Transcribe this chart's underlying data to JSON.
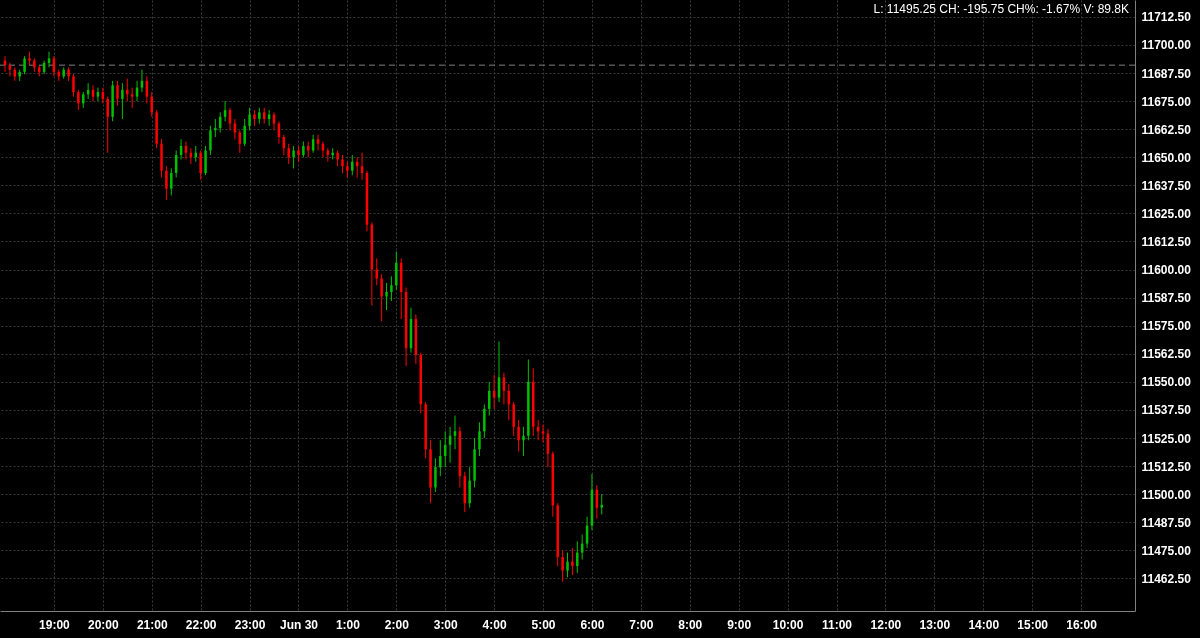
{
  "chart_data": {
    "type": "candlestick",
    "x": [
      "--06-29T18:00",
      "--06-29T18:06",
      "--06-29T18:12",
      "--06-29T18:18",
      "--06-29T18:24",
      "--06-29T18:30",
      "--06-29T18:36",
      "--06-29T18:42",
      "--06-29T18:48",
      "--06-29T18:54",
      "--06-29T19:00",
      "--06-29T19:06",
      "--06-29T19:12",
      "--06-29T19:18",
      "--06-29T19:24",
      "--06-29T19:30",
      "--06-29T19:36",
      "--06-29T19:42",
      "--06-29T19:48",
      "--06-29T19:54",
      "--06-29T20:00",
      "--06-29T20:06",
      "--06-29T20:12",
      "--06-29T20:18",
      "--06-29T20:24",
      "--06-29T20:30",
      "--06-29T20:36",
      "--06-29T20:42",
      "--06-29T20:48",
      "--06-29T20:54",
      "--06-29T21:00",
      "--06-29T21:06",
      "--06-29T21:12",
      "--06-29T21:18",
      "--06-29T21:24",
      "--06-29T21:30",
      "--06-29T21:36",
      "--06-29T21:42",
      "--06-29T21:48",
      "--06-29T21:54",
      "--06-29T22:00",
      "--06-29T22:06",
      "--06-29T22:12",
      "--06-29T22:18",
      "--06-29T22:24",
      "--06-29T22:30",
      "--06-29T22:36",
      "--06-29T22:42",
      "--06-29T22:48",
      "--06-29T22:54",
      "--06-29T23:00",
      "--06-29T23:06",
      "--06-29T23:12",
      "--06-29T23:18",
      "--06-29T23:24",
      "--06-29T23:30",
      "--06-29T23:36",
      "--06-29T23:42",
      "--06-29T23:48",
      "--06-29T23:54",
      "--06-30T00:00",
      "--06-30T00:06",
      "--06-30T00:12",
      "--06-30T00:18",
      "--06-30T00:24",
      "--06-30T00:30",
      "--06-30T00:36",
      "--06-30T00:42",
      "--06-30T00:48",
      "--06-30T00:54",
      "--06-30T01:00",
      "--06-30T01:06",
      "--06-30T01:12",
      "--06-30T01:18",
      "--06-30T01:24",
      "--06-30T01:30",
      "--06-30T01:36",
      "--06-30T01:42",
      "--06-30T01:48",
      "--06-30T01:54",
      "--06-30T02:00",
      "--06-30T02:06",
      "--06-30T02:12",
      "--06-30T02:18",
      "--06-30T02:24",
      "--06-30T02:30",
      "--06-30T02:36",
      "--06-30T02:42",
      "--06-30T02:48",
      "--06-30T02:54",
      "--06-30T03:00",
      "--06-30T03:06",
      "--06-30T03:12",
      "--06-30T03:18",
      "--06-30T03:24",
      "--06-30T03:30",
      "--06-30T03:36",
      "--06-30T03:42",
      "--06-30T03:48",
      "--06-30T03:54",
      "--06-30T04:00",
      "--06-30T04:06",
      "--06-30T04:12",
      "--06-30T04:18",
      "--06-30T04:24",
      "--06-30T04:30",
      "--06-30T04:36",
      "--06-30T04:42",
      "--06-30T04:48",
      "--06-30T04:54",
      "--06-30T05:00",
      "--06-30T05:06",
      "--06-30T05:12",
      "--06-30T05:18",
      "--06-30T05:24",
      "--06-30T05:30",
      "--06-30T05:36",
      "--06-30T05:42",
      "--06-30T05:48",
      "--06-30T05:54",
      "--06-30T06:00",
      "--06-30T06:06",
      "--06-30T06:12"
    ],
    "ohlc": [
      [
        11693,
        11695,
        11688,
        11691
      ],
      [
        11691,
        11692,
        11686,
        11689
      ],
      [
        11689,
        11690,
        11684,
        11686
      ],
      [
        11686,
        11689,
        11684,
        11688
      ],
      [
        11688,
        11695,
        11687,
        11694
      ],
      [
        11694,
        11697,
        11691,
        11693
      ],
      [
        11693,
        11694,
        11688,
        11690
      ],
      [
        11690,
        11691,
        11686,
        11688
      ],
      [
        11688,
        11693,
        11687,
        11692
      ],
      [
        11692,
        11697,
        11690,
        11694
      ],
      [
        11694,
        11695,
        11686,
        11688
      ],
      [
        11688,
        11689,
        11684,
        11686
      ],
      [
        11686,
        11690,
        11685,
        11689
      ],
      [
        11689,
        11690,
        11684,
        11686
      ],
      [
        11686,
        11687,
        11677,
        11679
      ],
      [
        11679,
        11680,
        11671,
        11674
      ],
      [
        11674,
        11679,
        11672,
        11678
      ],
      [
        11678,
        11683,
        11676,
        11680
      ],
      [
        11680,
        11682,
        11675,
        11677
      ],
      [
        11677,
        11681,
        11675,
        11679
      ],
      [
        11679,
        11681,
        11674,
        11676
      ],
      [
        11676,
        11677,
        11652,
        11668
      ],
      [
        11668,
        11684,
        11666,
        11682
      ],
      [
        11682,
        11684,
        11673,
        11676
      ],
      [
        11676,
        11683,
        11667,
        11680
      ],
      [
        11680,
        11685,
        11675,
        11678
      ],
      [
        11678,
        11681,
        11672,
        11677
      ],
      [
        11677,
        11684,
        11675,
        11681
      ],
      [
        11681,
        11689,
        11679,
        11684
      ],
      [
        11684,
        11686,
        11674,
        11677
      ],
      [
        11677,
        11679,
        11668,
        11670
      ],
      [
        11670,
        11671,
        11654,
        11656
      ],
      [
        11656,
        11658,
        11641,
        11644
      ],
      [
        11644,
        11646,
        11631,
        11636
      ],
      [
        11636,
        11645,
        11633,
        11643
      ],
      [
        11643,
        11653,
        11641,
        11651
      ],
      [
        11651,
        11658,
        11649,
        11655
      ],
      [
        11655,
        11657,
        11649,
        11652
      ],
      [
        11652,
        11654,
        11647,
        11650
      ],
      [
        11650,
        11655,
        11648,
        11652
      ],
      [
        11652,
        11653,
        11640,
        11643
      ],
      [
        11643,
        11655,
        11642,
        11653
      ],
      [
        11653,
        11664,
        11651,
        11662
      ],
      [
        11662,
        11667,
        11659,
        11663
      ],
      [
        11663,
        11670,
        11661,
        11668
      ],
      [
        11668,
        11675,
        11666,
        11671
      ],
      [
        11671,
        11672,
        11662,
        11665
      ],
      [
        11665,
        11667,
        11658,
        11661
      ],
      [
        11661,
        11662,
        11652,
        11656
      ],
      [
        11656,
        11667,
        11655,
        11664
      ],
      [
        11664,
        11672,
        11662,
        11669
      ],
      [
        11669,
        11671,
        11664,
        11667
      ],
      [
        11667,
        11672,
        11665,
        11670
      ],
      [
        11670,
        11672,
        11665,
        11667
      ],
      [
        11667,
        11671,
        11664,
        11669
      ],
      [
        11669,
        11670,
        11662,
        11665
      ],
      [
        11665,
        11666,
        11656,
        11659
      ],
      [
        11659,
        11660,
        11651,
        11654
      ],
      [
        11654,
        11656,
        11647,
        11650
      ],
      [
        11650,
        11655,
        11645,
        11653
      ],
      [
        11653,
        11655,
        11648,
        11651
      ],
      [
        11651,
        11657,
        11650,
        11655
      ],
      [
        11655,
        11657,
        11650,
        11653
      ],
      [
        11653,
        11660,
        11652,
        11658
      ],
      [
        11658,
        11660,
        11653,
        11656
      ],
      [
        11656,
        11657,
        11650,
        11653
      ],
      [
        11653,
        11654,
        11648,
        11651
      ],
      [
        11651,
        11654,
        11649,
        11652
      ],
      [
        11652,
        11653,
        11646,
        11649
      ],
      [
        11649,
        11651,
        11643,
        11646
      ],
      [
        11646,
        11648,
        11641,
        11644
      ],
      [
        11644,
        11651,
        11642,
        11648
      ],
      [
        11648,
        11650,
        11641,
        11646
      ],
      [
        11646,
        11652,
        11640,
        11643
      ],
      [
        11643,
        11644,
        11617,
        11620
      ],
      [
        11620,
        11621,
        11584,
        11600
      ],
      [
        11600,
        11605,
        11593,
        11596
      ],
      [
        11596,
        11598,
        11577,
        11588
      ],
      [
        11588,
        11594,
        11582,
        11590
      ],
      [
        11590,
        11597,
        11586,
        11593
      ],
      [
        11593,
        11608,
        11591,
        11603
      ],
      [
        11603,
        11605,
        11578,
        11590
      ],
      [
        11590,
        11592,
        11557,
        11565
      ],
      [
        11565,
        11583,
        11563,
        11578
      ],
      [
        11578,
        11580,
        11558,
        11562
      ],
      [
        11562,
        11563,
        11536,
        11540
      ],
      [
        11540,
        11541,
        11516,
        11520
      ],
      [
        11520,
        11524,
        11496,
        11503
      ],
      [
        11503,
        11516,
        11501,
        11512
      ],
      [
        11512,
        11524,
        11508,
        11517
      ],
      [
        11517,
        11528,
        11512,
        11522
      ],
      [
        11522,
        11530,
        11514,
        11526
      ],
      [
        11526,
        11535,
        11520,
        11528
      ],
      [
        11528,
        11530,
        11503,
        11508
      ],
      [
        11508,
        11510,
        11492,
        11496
      ],
      [
        11496,
        11512,
        11494,
        11506
      ],
      [
        11506,
        11525,
        11503,
        11520
      ],
      [
        11520,
        11532,
        11517,
        11528
      ],
      [
        11528,
        11540,
        11525,
        11538
      ],
      [
        11538,
        11550,
        11535,
        11546
      ],
      [
        11546,
        11553,
        11538,
        11543
      ],
      [
        11543,
        11568,
        11541,
        11552
      ],
      [
        11552,
        11554,
        11540,
        11546
      ],
      [
        11546,
        11549,
        11533,
        11540
      ],
      [
        11540,
        11541,
        11526,
        11530
      ],
      [
        11530,
        11533,
        11519,
        11524
      ],
      [
        11524,
        11530,
        11517,
        11526
      ],
      [
        11526,
        11560,
        11524,
        11550
      ],
      [
        11550,
        11556,
        11526,
        11530
      ],
      [
        11530,
        11533,
        11524,
        11528
      ],
      [
        11528,
        11531,
        11523,
        11527
      ],
      [
        11527,
        11529,
        11512,
        11518
      ],
      [
        11518,
        11519,
        11490,
        11495
      ],
      [
        11495,
        11496,
        11468,
        11472
      ],
      [
        11472,
        11475,
        11461,
        11466
      ],
      [
        11466,
        11474,
        11463,
        11470
      ],
      [
        11470,
        11476,
        11464,
        11468
      ],
      [
        11468,
        11479,
        11465,
        11474
      ],
      [
        11474,
        11482,
        11471,
        11478
      ],
      [
        11478,
        11490,
        11476,
        11486
      ],
      [
        11486,
        11509,
        11484,
        11502
      ],
      [
        11502,
        11504,
        11489,
        11494
      ],
      [
        11494,
        11500,
        11491,
        11495.25
      ]
    ],
    "colors": [
      "#ff0000",
      "#ff0000",
      "#ff0000",
      "#00c000",
      "#00c000",
      "#ff0000",
      "#ff0000",
      "#ff0000",
      "#00c000",
      "#00c000",
      "#ff0000",
      "#ff0000",
      "#00c000",
      "#ff0000",
      "#ff0000",
      "#ff0000",
      "#00c000",
      "#00c000",
      "#ff0000",
      "#00c000",
      "#ff0000",
      "#ff0000",
      "#00c000",
      "#ff0000",
      "#00c000",
      "#ff0000",
      "#ff0000",
      "#00c000",
      "#00c000",
      "#ff0000",
      "#ff0000",
      "#ff0000",
      "#ff0000",
      "#ff0000",
      "#00c000",
      "#00c000",
      "#00c000",
      "#ff0000",
      "#ff0000",
      "#00c000",
      "#ff0000",
      "#00c000",
      "#00c000",
      "#00c000",
      "#00c000",
      "#00c000",
      "#ff0000",
      "#ff0000",
      "#ff0000",
      "#00c000",
      "#00c000",
      "#ff0000",
      "#00c000",
      "#ff0000",
      "#00c000",
      "#ff0000",
      "#ff0000",
      "#ff0000",
      "#ff0000",
      "#00c000",
      "#ff0000",
      "#00c000",
      "#ff0000",
      "#00c000",
      "#ff0000",
      "#ff0000",
      "#ff0000",
      "#00c000",
      "#ff0000",
      "#ff0000",
      "#ff0000",
      "#00c000",
      "#ff0000",
      "#ff0000",
      "#ff0000",
      "#ff0000",
      "#ff0000",
      "#ff0000",
      "#00c000",
      "#00c000",
      "#00c000",
      "#ff0000",
      "#ff0000",
      "#00c000",
      "#ff0000",
      "#ff0000",
      "#ff0000",
      "#ff0000",
      "#00c000",
      "#00c000",
      "#00c000",
      "#00c000",
      "#00c000",
      "#ff0000",
      "#ff0000",
      "#00c000",
      "#00c000",
      "#00c000",
      "#00c000",
      "#00c000",
      "#ff0000",
      "#00c000",
      "#ff0000",
      "#ff0000",
      "#ff0000",
      "#ff0000",
      "#00c000",
      "#00c000",
      "#ff0000",
      "#ff0000",
      "#ff0000",
      "#ff0000",
      "#ff0000",
      "#ff0000",
      "#ff0000",
      "#00c000",
      "#ff0000",
      "#00c000",
      "#00c000",
      "#00c000",
      "#00c000",
      "#ff0000",
      "#00c000"
    ],
    "xlim": [
      "--06-29T18:00",
      "--06-30T17:00"
    ],
    "xticks": [
      {
        "value": "--06-29T19:00",
        "label": "19:00"
      },
      {
        "value": "--06-29T20:00",
        "label": "20:00"
      },
      {
        "value": "--06-29T21:00",
        "label": "21:00"
      },
      {
        "value": "--06-29T22:00",
        "label": "22:00"
      },
      {
        "value": "--06-29T23:00",
        "label": "23:00"
      },
      {
        "value": "--06-30T00:00",
        "label": "Jun 30"
      },
      {
        "value": "--06-30T01:00",
        "label": "1:00"
      },
      {
        "value": "--06-30T02:00",
        "label": "2:00"
      },
      {
        "value": "--06-30T03:00",
        "label": "3:00"
      },
      {
        "value": "--06-30T04:00",
        "label": "4:00"
      },
      {
        "value": "--06-30T05:00",
        "label": "5:00"
      },
      {
        "value": "--06-30T06:00",
        "label": "6:00"
      },
      {
        "value": "--06-30T07:00",
        "label": "7:00"
      },
      {
        "value": "--06-30T08:00",
        "label": "8:00"
      },
      {
        "value": "--06-30T09:00",
        "label": "9:00"
      },
      {
        "value": "--06-30T10:00",
        "label": "10:00"
      },
      {
        "value": "--06-30T11:00",
        "label": "11:00"
      },
      {
        "value": "--06-30T12:00",
        "label": "12:00"
      },
      {
        "value": "--06-30T13:00",
        "label": "13:00"
      },
      {
        "value": "--06-30T14:00",
        "label": "14:00"
      },
      {
        "value": "--06-30T15:00",
        "label": "15:00"
      },
      {
        "value": "--06-30T16:00",
        "label": "16:00"
      }
    ],
    "ylim": [
      11448,
      11720
    ],
    "yticks": [
      {
        "value": 11462.5,
        "label": "11462.50"
      },
      {
        "value": 11475,
        "label": "11475.00"
      },
      {
        "value": 11487.5,
        "label": "11487.50"
      },
      {
        "value": 11500,
        "label": "11500.00"
      },
      {
        "value": 11512.5,
        "label": "11512.50"
      },
      {
        "value": 11525,
        "label": "11525.00"
      },
      {
        "value": 11537.5,
        "label": "11537.50"
      },
      {
        "value": 11550,
        "label": "11550.00"
      },
      {
        "value": 11562.5,
        "label": "11562.50"
      },
      {
        "value": 11575,
        "label": "11575.00"
      },
      {
        "value": 11587.5,
        "label": "11587.50"
      },
      {
        "value": 11600,
        "label": "11600.00"
      },
      {
        "value": 11612.5,
        "label": "11612.50"
      },
      {
        "value": 11625,
        "label": "11625.00"
      },
      {
        "value": 11637.5,
        "label": "11637.50"
      },
      {
        "value": 11650,
        "label": "11650.00"
      },
      {
        "value": 11662.5,
        "label": "11662.50"
      },
      {
        "value": 11675,
        "label": "11675.00"
      },
      {
        "value": 11687.5,
        "label": "11687.50"
      },
      {
        "value": 11700,
        "label": "11700.00"
      },
      {
        "value": 11712.5,
        "label": "11712.50"
      }
    ],
    "grid": true,
    "ref_lines": [
      {
        "axis": "y",
        "value": 11691,
        "color": "#808080",
        "line_style": "dashed"
      }
    ],
    "annotations": [
      "L: 11495.25 CH: -195.75 CH%: -1.67% V: 89.8K"
    ]
  }
}
